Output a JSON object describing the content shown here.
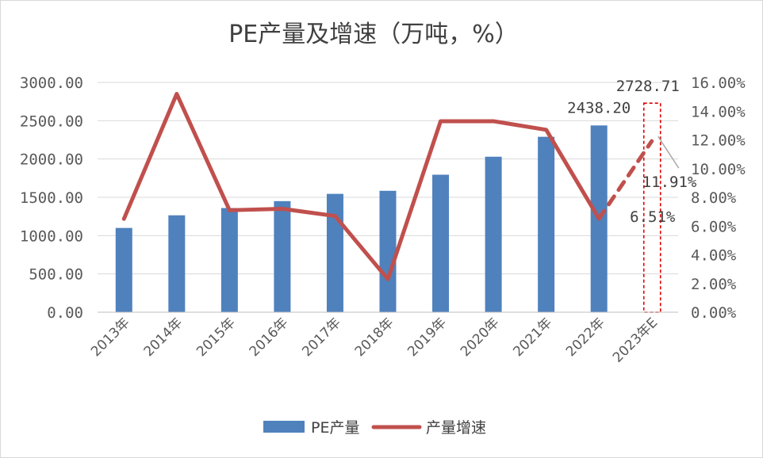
{
  "chart_data": {
    "type": "bar",
    "title": "PE产量及增速（万吨，%）",
    "categories": [
      "2013年",
      "2014年",
      "2015年",
      "2016年",
      "2017年",
      "2018年",
      "2019年",
      "2020年",
      "2021年",
      "2022年",
      "2023年E"
    ],
    "series": [
      {
        "name": "PE产量",
        "type": "bar",
        "axis": "left",
        "color": "#4f81bd",
        "values": [
          1100,
          1265,
          1360,
          1450,
          1545,
          1585,
          1795,
          2030,
          2290,
          2438.2,
          2728.71
        ]
      },
      {
        "name": "产量增速",
        "type": "line",
        "axis": "right",
        "color": "#c0504d",
        "values": [
          6.5,
          15.2,
          7.1,
          7.2,
          6.7,
          2.3,
          13.3,
          13.3,
          12.7,
          6.51,
          11.91
        ],
        "last_segment_dashed": true
      }
    ],
    "y_left": {
      "min": 0,
      "max": 3000,
      "ticks": [
        "0.00",
        "500.00",
        "1000.00",
        "1500.00",
        "2000.00",
        "2500.00",
        "3000.00"
      ]
    },
    "y_right": {
      "min": 0,
      "max": 16,
      "ticks": [
        "0.00%",
        "2.00%",
        "4.00%",
        "6.00%",
        "8.00%",
        "10.00%",
        "12.00%",
        "14.00%",
        "16.00%"
      ]
    },
    "data_labels": {
      "bar_2022": "2438.20",
      "bar_2023E": "2728.71",
      "line_2022": "6.51%",
      "line_2023E": "11.91%"
    },
    "highlight": {
      "category": "2023年E",
      "style": "red dashed box"
    },
    "grid": "horizontal",
    "legend": {
      "position": "bottom",
      "entries": [
        "PE产量",
        "产量增速"
      ]
    }
  }
}
